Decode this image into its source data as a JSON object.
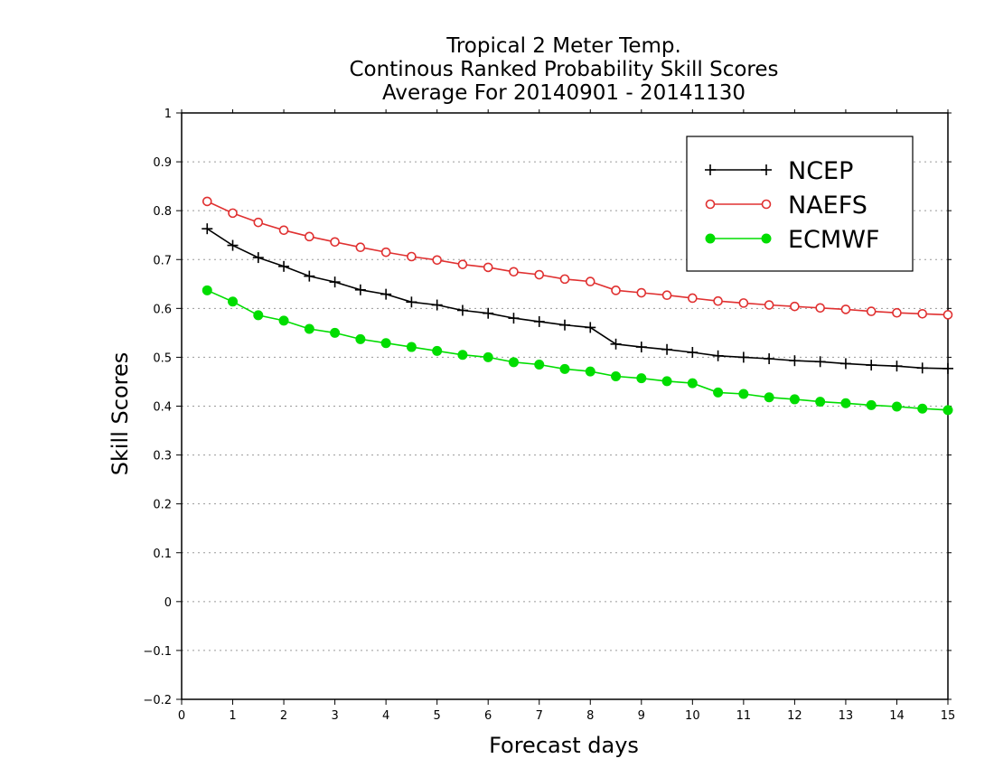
{
  "chart_data": {
    "type": "line",
    "title_lines": [
      "Tropical 2 Meter Temp.",
      "Continous Ranked Probability Skill Scores",
      "Average For 20140901 - 20141130"
    ],
    "xlabel": "Forecast days",
    "ylabel": "Skill Scores",
    "xlim": [
      0,
      15
    ],
    "ylim": [
      -0.2,
      1
    ],
    "xticks": [
      0,
      1,
      2,
      3,
      4,
      5,
      6,
      7,
      8,
      9,
      10,
      11,
      12,
      13,
      14,
      15
    ],
    "xtick_labels": [
      "0",
      "1",
      "2",
      "3",
      "4",
      "5",
      "6",
      "7",
      "8",
      "9",
      "10",
      "11",
      "12",
      "13",
      "14",
      "15"
    ],
    "yticks": [
      -0.2,
      -0.1,
      0,
      0.1,
      0.2,
      0.3,
      0.4,
      0.5,
      0.6,
      0.7,
      0.8,
      0.9,
      1
    ],
    "ytick_labels": [
      "−0.2",
      "−0.1",
      "0",
      "0.1",
      "0.2",
      "0.3",
      "0.4",
      "0.5",
      "0.6",
      "0.7",
      "0.8",
      "0.9",
      "1"
    ],
    "grid": "horizontal-dotted",
    "legend_position": "top-right",
    "x": [
      0.5,
      1,
      1.5,
      2,
      2.5,
      3,
      3.5,
      4,
      4.5,
      5,
      5.5,
      6,
      6.5,
      7,
      7.5,
      8,
      8.5,
      9,
      9.5,
      10,
      10.5,
      11,
      11.5,
      12,
      12.5,
      13,
      13.5,
      14,
      14.5,
      15
    ],
    "series": [
      {
        "name": "NCEP",
        "color": "#000000",
        "marker": "plus",
        "values": [
          0.763,
          0.729,
          0.704,
          0.686,
          0.666,
          0.654,
          0.638,
          0.629,
          0.613,
          0.607,
          0.596,
          0.59,
          0.58,
          0.573,
          0.566,
          0.561,
          0.527,
          0.521,
          0.516,
          0.51,
          0.503,
          0.5,
          0.497,
          0.493,
          0.491,
          0.487,
          0.484,
          0.482,
          0.478,
          0.477
        ]
      },
      {
        "name": "NAEFS",
        "color": "#e03030",
        "marker": "open-circle",
        "values": [
          0.819,
          0.795,
          0.776,
          0.76,
          0.747,
          0.736,
          0.725,
          0.715,
          0.706,
          0.699,
          0.69,
          0.684,
          0.675,
          0.669,
          0.66,
          0.655,
          0.637,
          0.632,
          0.627,
          0.621,
          0.615,
          0.611,
          0.607,
          0.604,
          0.601,
          0.598,
          0.594,
          0.591,
          0.589,
          0.587
        ]
      },
      {
        "name": "ECMWF",
        "color": "#00dd00",
        "marker": "filled-circle",
        "values": [
          0.637,
          0.614,
          0.586,
          0.575,
          0.558,
          0.55,
          0.537,
          0.529,
          0.521,
          0.513,
          0.505,
          0.5,
          0.49,
          0.485,
          0.476,
          0.471,
          0.461,
          0.457,
          0.451,
          0.447,
          0.428,
          0.425,
          0.418,
          0.414,
          0.409,
          0.406,
          0.402,
          0.399,
          0.395,
          0.392
        ]
      }
    ]
  }
}
